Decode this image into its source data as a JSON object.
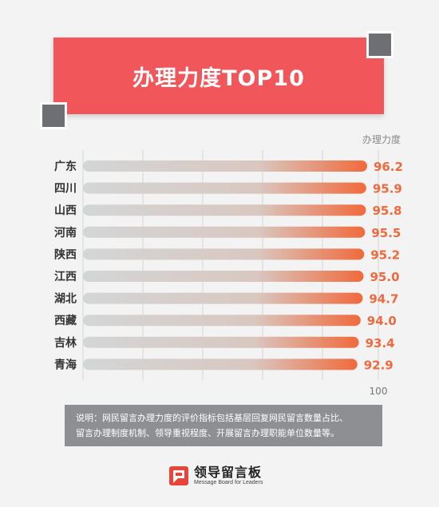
{
  "title": "办理力度TOP10",
  "colors": {
    "title_bg": "#f0565a",
    "bar_start": "#d3d6d7",
    "bar_end": "#f06a3c",
    "value_text": "#ef6a3d",
    "deco": "#6d6f73",
    "note_bg": "#8e8f93"
  },
  "chart_data": {
    "type": "bar",
    "orientation": "horizontal",
    "value_axis_label": "办理力度",
    "max_tick_label": "100",
    "xlim": [
      0,
      100
    ],
    "grid": true,
    "categories": [
      "广东",
      "四川",
      "山西",
      "河南",
      "陕西",
      "江西",
      "湖北",
      "西藏",
      "吉林",
      "青海"
    ],
    "values": [
      96.2,
      95.9,
      95.8,
      95.5,
      95.2,
      95.0,
      94.7,
      94.0,
      93.4,
      92.9
    ],
    "value_labels": [
      "96.2",
      "95.9",
      "95.8",
      "95.5",
      "95.2",
      "95.0",
      "94.7",
      "94.0",
      "93.4",
      "92.9"
    ]
  },
  "note": {
    "line1": "说明：网民留言办理力度的评价指标包括基层回复网民留言数量占比、",
    "line2": "留言办理制度机制、领导重视程度、开展留言办理职能单位数量等。"
  },
  "brand": {
    "name": "领导留言板",
    "subtitle": "Message Board for Leaders"
  }
}
